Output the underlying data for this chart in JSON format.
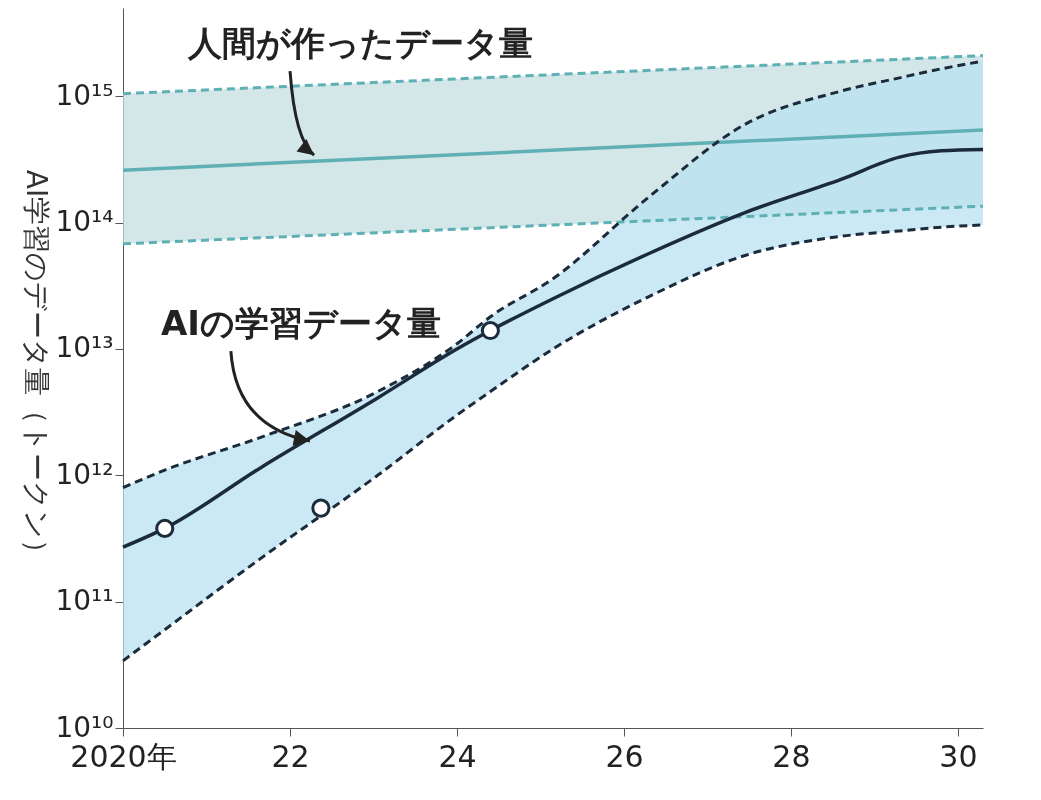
{
  "chart_data": {
    "type": "line",
    "ylabel": "AI学習のデータ量（トークン）",
    "log": true,
    "grid": false,
    "line_style": "solid",
    "xlim": [
      2020,
      2030.3
    ],
    "xticks": [
      {
        "value": 2020,
        "label": "2020年"
      },
      {
        "value": 2022,
        "label": "22"
      },
      {
        "value": 2024,
        "label": "24"
      },
      {
        "value": 2026,
        "label": "26"
      },
      {
        "value": 2028,
        "label": "28"
      },
      {
        "value": 2030,
        "label": "30"
      }
    ],
    "ylim": [
      10000000000.0,
      5000000000000000.0
    ],
    "yticks": [
      {
        "value": 10000000000.0,
        "label": "10¹⁰"
      },
      {
        "value": 100000000000.0,
        "label": "10¹¹"
      },
      {
        "value": 1000000000000.0,
        "label": "10¹²"
      },
      {
        "value": 10000000000000.0,
        "label": "10¹³"
      },
      {
        "value": 100000000000000.0,
        "label": "10¹⁴"
      },
      {
        "value": 1000000000000000.0,
        "label": "10¹⁵"
      }
    ],
    "series": [
      {
        "color": "#5fb0b5",
        "x": [
          2020,
          2030.3
        ],
        "values": [
          260000000000000.0,
          540000000000000.0
        ],
        "lower": [
          68000000000000.0,
          135000000000000.0
        ],
        "upper": [
          1050000000000000.0,
          2100000000000000.0
        ]
      },
      {
        "color": "#5fb0b5",
        "line_style": "dashed",
        "x": [
          2020,
          2030.3
        ],
        "values": [
          68000000000000.0,
          135000000000000.0
        ]
      },
      {
        "color": "#5fb0b5",
        "line_style": "dashed",
        "x": [
          2020,
          2030.3
        ],
        "values": [
          1050000000000000.0,
          2100000000000000.0
        ]
      },
      {
        "color": "#1b2b3b",
        "x": [
          2020,
          2020.5,
          2021.65,
          2023.05,
          2024,
          2024.4,
          2025.15,
          2026.3,
          2027.45,
          2028.6,
          2029.3,
          2029.8,
          2030.3
        ],
        "values": [
          270000000000.0,
          380000000000.0,
          1150000000000.0,
          4100000000000.0,
          10000000000000.0,
          14000000000000.0,
          25000000000000.0,
          57000000000000.0,
          120000000000000.0,
          220000000000000.0,
          330000000000000.0,
          370000000000000.0,
          380000000000000.0
        ],
        "lower": [
          34000000000.0,
          60000000000.0,
          220000000000.0,
          1000000000000.0,
          3000000000000.0,
          4600000000000.0,
          10000000000000.0,
          26000000000000.0,
          55000000000000.0,
          78000000000000.0,
          86000000000000.0,
          92000000000000.0,
          96000000000000.0
        ],
        "upper": [
          800000000000.0,
          1100000000000.0,
          2000000000000.0,
          4600000000000.0,
          11000000000000.0,
          18000000000000.0,
          36000000000000.0,
          160000000000000.0,
          600000000000000.0,
          1100000000000000.0,
          1400000000000000.0,
          1650000000000000.0,
          1900000000000000.0
        ]
      },
      {
        "color": "#1b2b3b",
        "line_style": "dashed",
        "x": [
          2020,
          2020.5,
          2021.65,
          2023.05,
          2024,
          2024.4,
          2025.15,
          2026.3,
          2027.45,
          2028.6,
          2029.3,
          2029.8,
          2030.3
        ],
        "values": [
          34000000000.0,
          60000000000.0,
          220000000000.0,
          1000000000000.0,
          3000000000000.0,
          4600000000000.0,
          10000000000000.0,
          26000000000000.0,
          55000000000000.0,
          78000000000000.0,
          86000000000000.0,
          92000000000000.0,
          96000000000000.0
        ]
      },
      {
        "color": "#1b2b3b",
        "line_style": "dashed",
        "x": [
          2020,
          2020.5,
          2021.65,
          2023.05,
          2024,
          2024.4,
          2025.15,
          2026.3,
          2027.45,
          2028.6,
          2029.3,
          2029.8,
          2030.3
        ],
        "values": [
          800000000000.0,
          1100000000000.0,
          2000000000000.0,
          4600000000000.0,
          11000000000000.0,
          18000000000000.0,
          36000000000000.0,
          160000000000000.0,
          600000000000000.0,
          1100000000000000.0,
          1400000000000000.0,
          1650000000000000.0,
          1900000000000000.0
        ]
      },
      {
        "type": "scatter",
        "color": "#1b2b3b",
        "x": [
          2020.5,
          2022.37,
          2024.4
        ],
        "values": [
          380000000000.0,
          550000000000.0,
          14000000000000.0
        ]
      }
    ],
    "annotations": [
      {
        "text": "人間が作ったデータ量",
        "x": 2022.3,
        "y": 330000000000000.0
      },
      {
        "text": "AIの学習データ量",
        "x": 2022.25,
        "y": 1800000000000.0
      }
    ]
  }
}
